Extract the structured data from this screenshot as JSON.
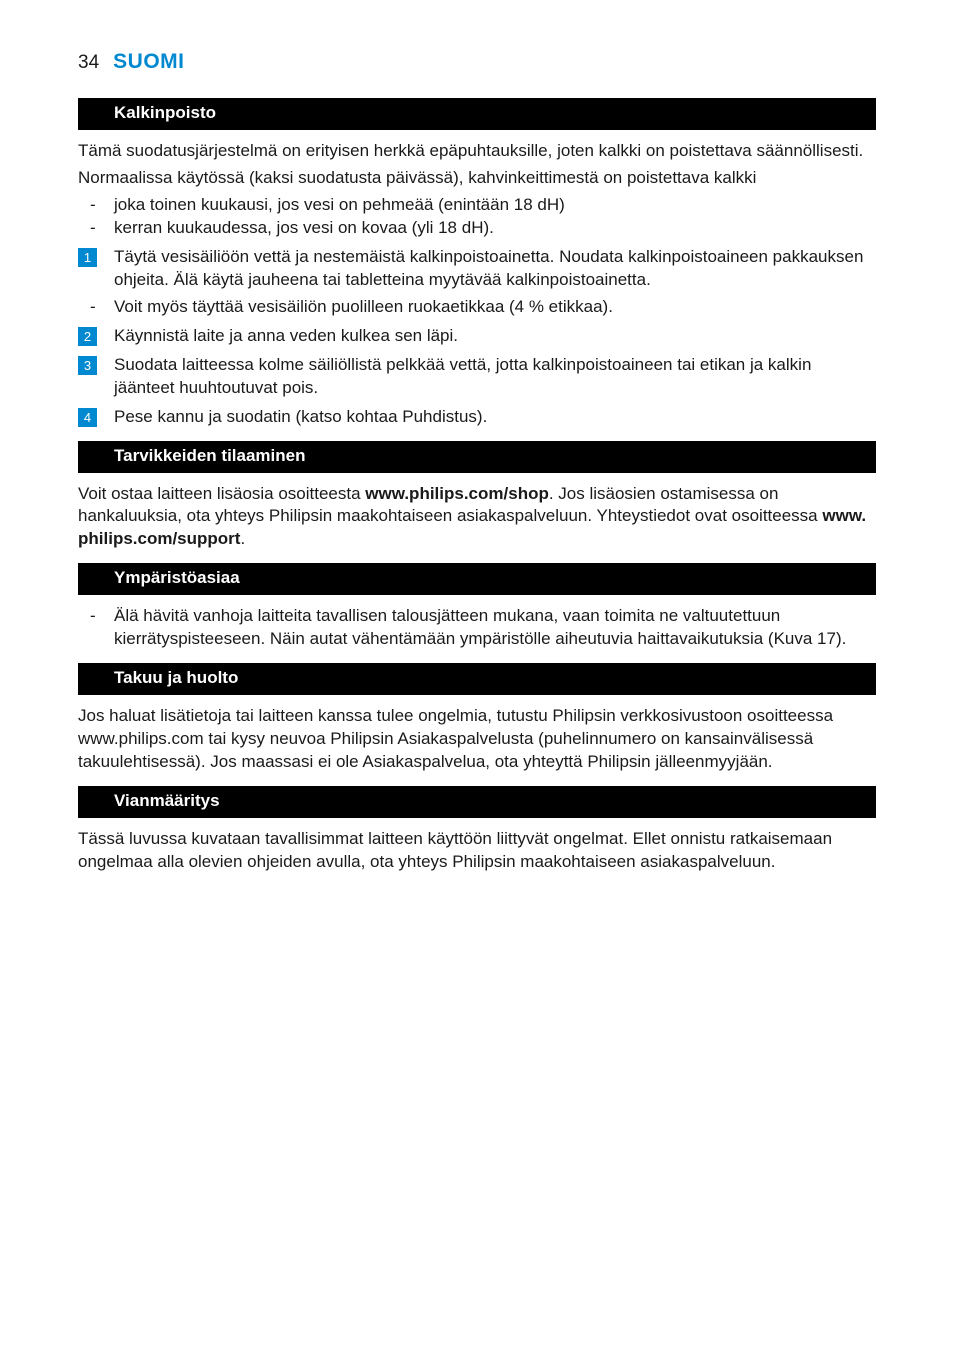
{
  "page": {
    "number": "34",
    "title": "SUOMI"
  },
  "colors": {
    "accent": "#0089d0",
    "header_bg": "#000000",
    "header_fg": "#ffffff",
    "text": "#1a1a1a",
    "bg": "#ffffff"
  },
  "sections": {
    "kalkinpoisto": {
      "title": "Kalkinpoisto",
      "intro1": "Tämä suodatusjärjestelmä on erityisen herkkä epäpuhtauksille, joten kalkki on poistettava säännöllisesti.",
      "intro2": "Normaalissa käytössä (kaksi suodatusta päivässä), kahvinkeittimestä on poistettava kalkki",
      "bullets": [
        "joka toinen kuukausi, jos vesi on pehmeää (enintään 18 dH)",
        "kerran kuukaudessa, jos vesi on kovaa (yli 18 dH)."
      ],
      "steps": [
        {
          "n": "1",
          "text": "Täytä vesisäiliöön vettä ja nestemäistä kalkinpoistoainetta. Noudata kalkinpoistoaineen pakkauksen ohjeita. Älä käytä jauheena tai tabletteina myytävää kalkinpoistoainetta.",
          "sub": [
            "Voit myös täyttää vesisäiliön puolilleen ruokaetikkaa (4 % etikkaa)."
          ]
        },
        {
          "n": "2",
          "text": "Käynnistä laite ja anna veden kulkea sen läpi."
        },
        {
          "n": "3",
          "text": "Suodata laitteessa kolme säiliöllistä pelkkää vettä, jotta kalkinpoistoaineen tai etikan ja kalkin jäänteet huuhtoutuvat pois."
        },
        {
          "n": "4",
          "text": "Pese kannu ja suodatin (katso kohtaa Puhdistus)."
        }
      ]
    },
    "tarvikkeet": {
      "title": "Tarvikkeiden tilaaminen",
      "text_pre": "Voit ostaa laitteen lisäosia osoitteesta ",
      "url1": "www.philips.com/shop",
      "text_mid": ". Jos lisäosien ostamisessa on hankaluuksia, ota yhteys Philipsin maakohtaiseen asiakaspalveluun. Yhteystiedot ovat osoitteessa ",
      "url2": "www. philips.com/support",
      "text_post": "."
    },
    "ymparisto": {
      "title": "Ympäristöasiaa",
      "bullets": [
        "Älä hävitä vanhoja laitteita tavallisen talousjätteen mukana, vaan toimita ne valtuutettuun kierrätyspisteeseen. Näin autat vähentämään ympäristölle aiheutuvia haittavaikutuksia (Kuva 17)."
      ]
    },
    "takuu": {
      "title": "Takuu ja huolto",
      "text": "Jos haluat lisätietoja tai laitteen kanssa tulee ongelmia, tutustu Philipsin verkkosivustoon osoitteessa www.philips.com tai kysy neuvoa Philipsin Asiakaspalvelusta (puhelinnumero on kansainvälisessä takuulehtisessä). Jos maassasi ei ole Asiakaspalvelua, ota yhteyttä Philipsin jälleenmyyjään."
    },
    "vianmaaritys": {
      "title": "Vianmääritys",
      "text": "Tässä luvussa kuvataan tavallisimmat laitteen käyttöön liittyvät ongelmat. Ellet onnistu ratkaisemaan ongelmaa alla olevien ohjeiden avulla, ota yhteys Philipsin maakohtaiseen asiakaspalveluun."
    }
  }
}
